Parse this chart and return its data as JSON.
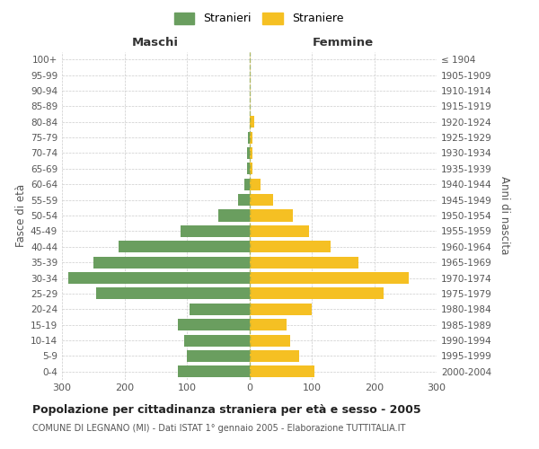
{
  "age_groups": [
    "0-4",
    "5-9",
    "10-14",
    "15-19",
    "20-24",
    "25-29",
    "30-34",
    "35-39",
    "40-44",
    "45-49",
    "50-54",
    "55-59",
    "60-64",
    "65-69",
    "70-74",
    "75-79",
    "80-84",
    "85-89",
    "90-94",
    "95-99",
    "100+"
  ],
  "birth_years": [
    "2000-2004",
    "1995-1999",
    "1990-1994",
    "1985-1989",
    "1980-1984",
    "1975-1979",
    "1970-1974",
    "1965-1969",
    "1960-1964",
    "1955-1959",
    "1950-1954",
    "1945-1949",
    "1940-1944",
    "1935-1939",
    "1930-1934",
    "1925-1929",
    "1920-1924",
    "1915-1919",
    "1910-1914",
    "1905-1909",
    "≤ 1904"
  ],
  "males": [
    115,
    100,
    105,
    115,
    95,
    245,
    290,
    250,
    210,
    110,
    50,
    18,
    8,
    4,
    3,
    2,
    0,
    0,
    0,
    0,
    0
  ],
  "females": [
    105,
    80,
    65,
    60,
    100,
    215,
    255,
    175,
    130,
    95,
    70,
    38,
    18,
    5,
    5,
    5,
    8,
    0,
    0,
    0,
    0
  ],
  "male_color": "#6a9e5f",
  "female_color": "#f5c023",
  "title": "Popolazione per cittadinanza straniera per età e sesso - 2005",
  "subtitle": "COMUNE DI LEGNANO (MI) - Dati ISTAT 1° gennaio 2005 - Elaborazione TUTTITALIA.IT",
  "xlabel_left": "Maschi",
  "xlabel_right": "Femmine",
  "ylabel_left": "Fasce di età",
  "ylabel_right": "Anni di nascita",
  "legend_male": "Stranieri",
  "legend_female": "Straniere",
  "xlim": 300,
  "background_color": "#ffffff",
  "grid_color": "#cccccc",
  "bar_height": 0.75
}
